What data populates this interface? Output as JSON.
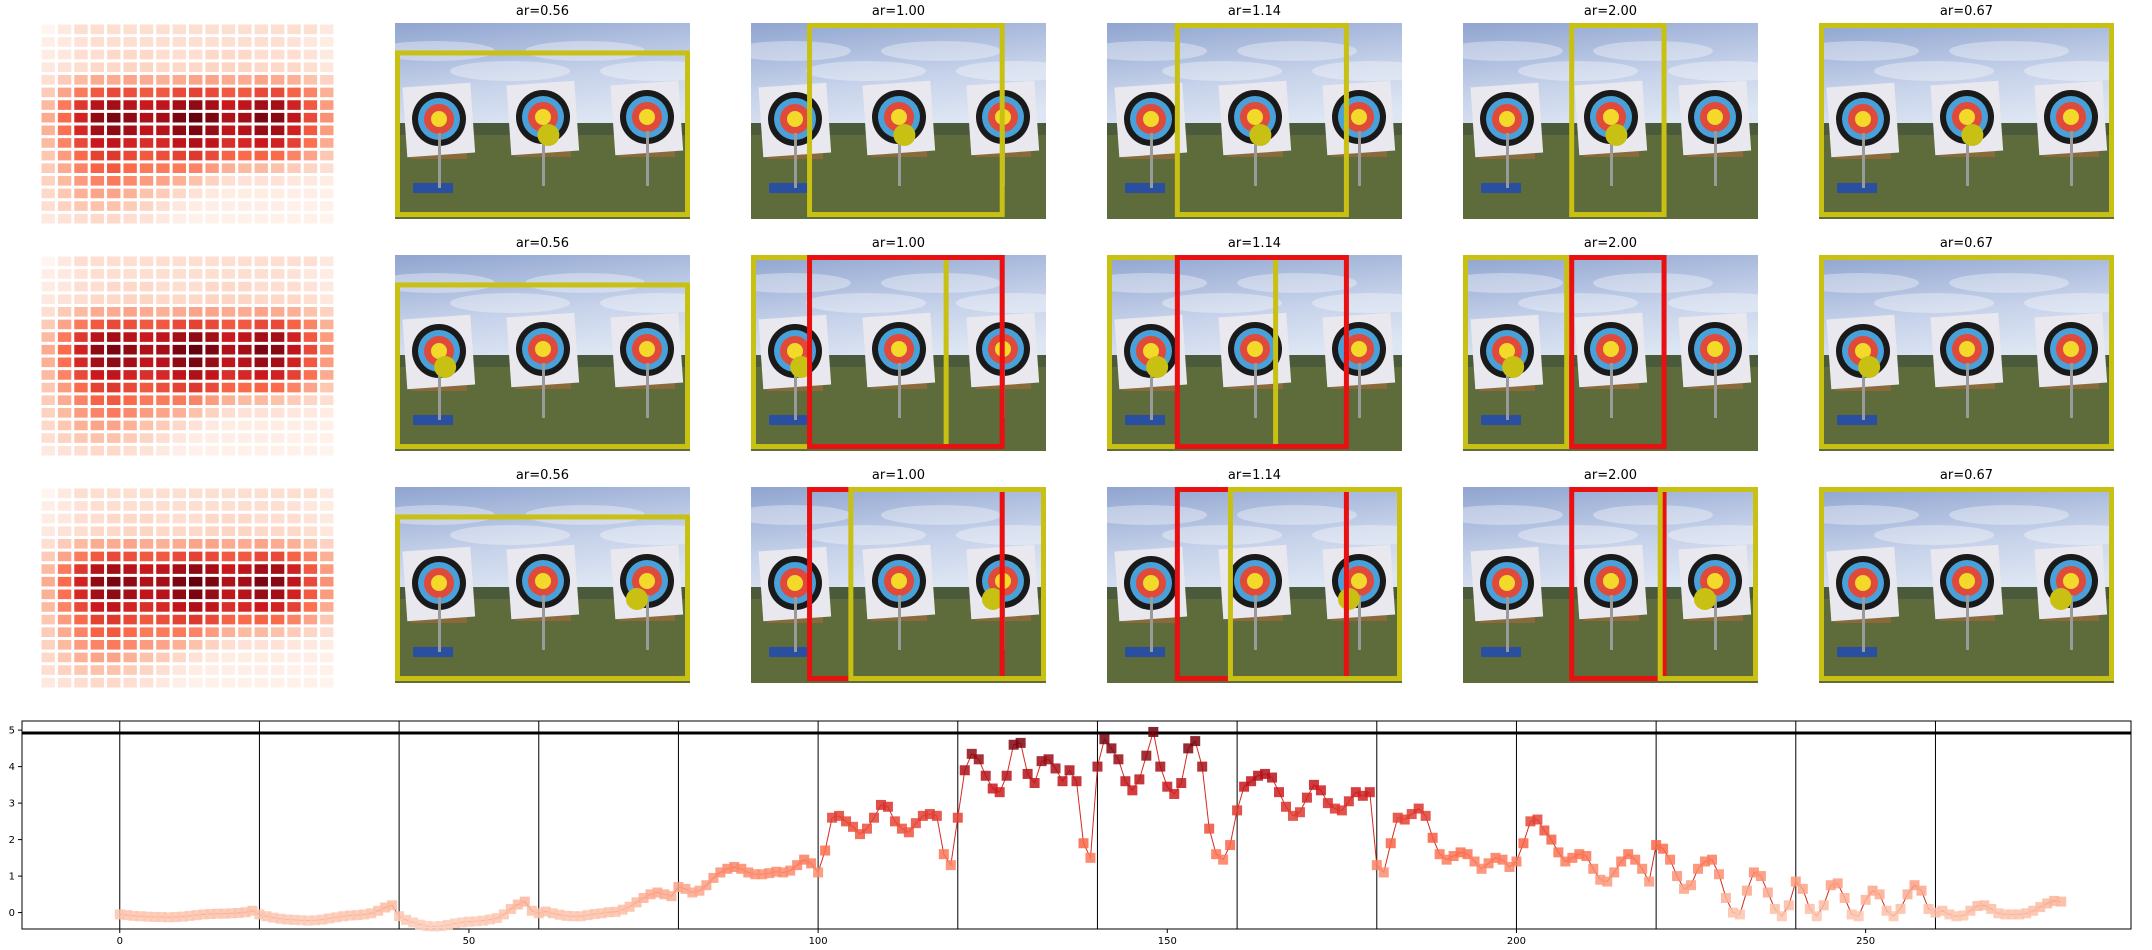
{
  "panels": {
    "rows": [
      {
        "titles": [
          "ar=0.56",
          "ar=1.00",
          "ar=1.14",
          "ar=2.00",
          "ar=0.67"
        ],
        "boxes": [
          [
            {
              "color": "#c8c012",
              "l": 0.0,
              "t": 0.14,
              "r": 1.0,
              "b": 0.99
            }
          ],
          [
            {
              "color": "#c8c012",
              "l": 0.19,
              "t": 0.0,
              "r": 0.86,
              "b": 0.99
            }
          ],
          [
            {
              "color": "#c8c012",
              "l": 0.23,
              "t": 0.0,
              "r": 0.82,
              "b": 0.99
            }
          ],
          [
            {
              "color": "#c8c012",
              "l": 0.36,
              "t": 0.0,
              "r": 0.69,
              "b": 0.99
            }
          ],
          [
            {
              "color": "#c8c012",
              "l": 0.0,
              "t": 0.0,
              "r": 1.0,
              "b": 0.99
            }
          ]
        ],
        "dot": 0.52
      },
      {
        "titles": [
          "ar=0.56",
          "ar=1.00",
          "ar=1.14",
          "ar=2.00",
          "ar=0.67"
        ],
        "boxes": [
          [
            {
              "color": "#c8c012",
              "l": 0.0,
              "t": 0.14,
              "r": 1.0,
              "b": 0.99
            }
          ],
          [
            {
              "color": "#c8c012",
              "l": 0.0,
              "t": 0.0,
              "r": 0.67,
              "b": 0.99
            },
            {
              "color": "#e81010",
              "l": 0.19,
              "t": 0.0,
              "r": 0.86,
              "b": 0.99
            }
          ],
          [
            {
              "color": "#c8c012",
              "l": 0.0,
              "t": 0.0,
              "r": 0.58,
              "b": 0.99
            },
            {
              "color": "#e81010",
              "l": 0.23,
              "t": 0.0,
              "r": 0.82,
              "b": 0.99
            }
          ],
          [
            {
              "color": "#c8c012",
              "l": 0.0,
              "t": 0.0,
              "r": 0.36,
              "b": 0.99
            },
            {
              "color": "#e81010",
              "l": 0.36,
              "t": 0.0,
              "r": 0.69,
              "b": 0.99
            }
          ],
          [
            {
              "color": "#c8c012",
              "l": 0.0,
              "t": 0.0,
              "r": 1.0,
              "b": 0.99
            }
          ]
        ],
        "dot": 0.17
      },
      {
        "titles": [
          "ar=0.56",
          "ar=1.00",
          "ar=1.14",
          "ar=2.00",
          "ar=0.67"
        ],
        "boxes": [
          [
            {
              "color": "#c8c012",
              "l": 0.0,
              "t": 0.14,
              "r": 1.0,
              "b": 0.99
            }
          ],
          [
            {
              "color": "#e81010",
              "l": 0.19,
              "t": 0.0,
              "r": 0.86,
              "b": 0.99
            },
            {
              "color": "#c8c012",
              "l": 0.33,
              "t": 0.0,
              "r": 1.0,
              "b": 0.99
            }
          ],
          [
            {
              "color": "#e81010",
              "l": 0.23,
              "t": 0.0,
              "r": 0.82,
              "b": 0.99
            },
            {
              "color": "#c8c012",
              "l": 0.41,
              "t": 0.0,
              "r": 1.0,
              "b": 0.99
            }
          ],
          [
            {
              "color": "#e81010",
              "l": 0.36,
              "t": 0.0,
              "r": 0.69,
              "b": 0.99
            },
            {
              "color": "#c8c012",
              "l": 0.66,
              "t": 0.0,
              "r": 1.0,
              "b": 0.99
            }
          ],
          [
            {
              "color": "#c8c012",
              "l": 0.0,
              "t": 0.0,
              "r": 1.0,
              "b": 0.99
            }
          ]
        ],
        "dot": 0.82
      }
    ]
  },
  "chart_data": {
    "type": "line",
    "title": "",
    "xlabel": "",
    "ylabel": "",
    "xlim": [
      -14,
      288
    ],
    "ylim": [
      -0.45,
      5.25
    ],
    "xticks": [
      0,
      50,
      100,
      150,
      200,
      250
    ],
    "yticks": [
      0,
      1,
      2,
      3,
      4,
      5
    ],
    "vlines": [
      0,
      20,
      40,
      60,
      80,
      100,
      120,
      140,
      160,
      180,
      200,
      220,
      240,
      260
    ],
    "hline": 4.92,
    "grid": false,
    "colormap": "reds",
    "series": [
      {
        "values": [
          -0.05,
          -0.07,
          -0.09,
          -0.1,
          -0.11,
          -0.12,
          -0.12,
          -0.13,
          -0.12,
          -0.11,
          -0.09,
          -0.07,
          -0.05,
          -0.04,
          -0.03,
          -0.03,
          -0.02,
          -0.01,
          0.01,
          0.05,
          -0.05,
          -0.1,
          -0.14,
          -0.17,
          -0.19,
          -0.2,
          -0.21,
          -0.22,
          -0.21,
          -0.19,
          -0.16,
          -0.13,
          -0.1,
          -0.08,
          -0.07,
          -0.05,
          -0.02,
          0.05,
          0.14,
          0.2,
          -0.1,
          -0.2,
          -0.27,
          -0.33,
          -0.37,
          -0.38,
          -0.37,
          -0.34,
          -0.3,
          -0.27,
          -0.25,
          -0.24,
          -0.22,
          -0.19,
          -0.15,
          -0.05,
          0.1,
          0.22,
          0.3,
          0.05,
          -0.02,
          0.03,
          -0.02,
          -0.06,
          -0.09,
          -0.1,
          -0.1,
          -0.07,
          -0.04,
          -0.02,
          0.01,
          0.02,
          0.08,
          0.16,
          0.28,
          0.4,
          0.5,
          0.55,
          0.5,
          0.45,
          0.7,
          0.65,
          0.55,
          0.6,
          0.75,
          0.95,
          1.1,
          1.2,
          1.25,
          1.2,
          1.1,
          1.05,
          1.05,
          1.08,
          1.12,
          1.1,
          1.15,
          1.3,
          1.45,
          1.35,
          1.1,
          1.7,
          2.6,
          2.65,
          2.5,
          2.35,
          2.15,
          2.3,
          2.6,
          2.95,
          2.9,
          2.5,
          2.3,
          2.2,
          2.45,
          2.65,
          2.7,
          2.65,
          1.6,
          1.3,
          2.6,
          3.9,
          4.35,
          4.2,
          3.75,
          3.4,
          3.3,
          3.75,
          4.6,
          4.65,
          3.8,
          3.55,
          4.15,
          4.2,
          3.95,
          3.6,
          3.9,
          3.6,
          1.9,
          1.5,
          4.0,
          4.75,
          4.5,
          4.2,
          3.6,
          3.35,
          3.65,
          4.3,
          4.95,
          4.0,
          3.45,
          3.25,
          3.55,
          4.5,
          4.7,
          4.0,
          2.3,
          1.6,
          1.45,
          1.85,
          2.8,
          3.45,
          3.6,
          3.75,
          3.8,
          3.7,
          3.3,
          2.9,
          2.65,
          2.75,
          3.15,
          3.5,
          3.35,
          3.0,
          2.85,
          2.8,
          3.05,
          3.3,
          3.2,
          3.3,
          1.3,
          1.1,
          1.9,
          2.6,
          2.55,
          2.7,
          2.85,
          2.65,
          2.05,
          1.6,
          1.45,
          1.55,
          1.65,
          1.6,
          1.4,
          1.2,
          1.35,
          1.5,
          1.45,
          1.25,
          1.4,
          1.9,
          2.5,
          2.55,
          2.25,
          2.0,
          1.65,
          1.4,
          1.5,
          1.6,
          1.55,
          1.2,
          0.9,
          0.85,
          1.1,
          1.4,
          1.6,
          1.45,
          1.2,
          0.85,
          1.85,
          1.75,
          1.45,
          1.0,
          0.65,
          0.75,
          1.2,
          1.4,
          1.45,
          1.05,
          0.4,
          0.0,
          -0.05,
          0.6,
          1.1,
          1.0,
          0.55,
          0.1,
          -0.1,
          0.2,
          0.85,
          0.65,
          0.1,
          -0.1,
          0.2,
          0.75,
          0.8,
          0.4,
          -0.05,
          -0.1,
          0.35,
          0.6,
          0.5,
          0.05,
          -0.1,
          0.1,
          0.5,
          0.75,
          0.6,
          0.1,
          0.0,
          0.05,
          -0.05,
          -0.1,
          -0.08,
          0.05,
          0.18,
          0.2,
          0.1,
          -0.02,
          -0.05,
          -0.05,
          -0.05,
          -0.02,
          0.05,
          0.15,
          0.25,
          0.32,
          0.3
        ]
      }
    ],
    "heatmap": {
      "rows": 16,
      "cols": 18,
      "values": [
        [
          0.0,
          0.05,
          0.1,
          0.1,
          0.1,
          0.1,
          0.1,
          0.1,
          0.1,
          0.1,
          0.1,
          0.1,
          0.1,
          0.1,
          0.1,
          0.1,
          0.1,
          0.05
        ],
        [
          0.03,
          0.05,
          0.08,
          0.1,
          0.1,
          0.1,
          0.1,
          0.1,
          0.1,
          0.1,
          0.1,
          0.1,
          0.1,
          0.1,
          0.1,
          0.08,
          0.06,
          0.04
        ],
        [
          0.04,
          0.06,
          0.1,
          0.1,
          0.12,
          0.12,
          0.12,
          0.1,
          0.1,
          0.1,
          0.12,
          0.12,
          0.12,
          0.1,
          0.1,
          0.1,
          0.08,
          0.05
        ],
        [
          0.05,
          0.08,
          0.1,
          0.12,
          0.12,
          0.14,
          0.14,
          0.12,
          0.12,
          0.12,
          0.14,
          0.14,
          0.14,
          0.12,
          0.12,
          0.12,
          0.1,
          0.06
        ],
        [
          0.1,
          0.18,
          0.25,
          0.3,
          0.3,
          0.32,
          0.3,
          0.28,
          0.3,
          0.32,
          0.32,
          0.3,
          0.3,
          0.32,
          0.3,
          0.28,
          0.22,
          0.15
        ],
        [
          0.18,
          0.32,
          0.45,
          0.55,
          0.6,
          0.58,
          0.55,
          0.55,
          0.6,
          0.62,
          0.6,
          0.55,
          0.55,
          0.6,
          0.6,
          0.52,
          0.42,
          0.28
        ],
        [
          0.25,
          0.45,
          0.65,
          0.8,
          0.85,
          0.8,
          0.75,
          0.78,
          0.85,
          0.9,
          0.85,
          0.75,
          0.78,
          0.85,
          0.85,
          0.72,
          0.55,
          0.35
        ],
        [
          0.3,
          0.5,
          0.72,
          0.9,
          0.95,
          0.9,
          0.82,
          0.85,
          0.95,
          1.0,
          0.95,
          0.82,
          0.85,
          0.95,
          0.92,
          0.78,
          0.6,
          0.38
        ],
        [
          0.28,
          0.48,
          0.7,
          0.85,
          0.9,
          0.85,
          0.78,
          0.8,
          0.9,
          0.95,
          0.88,
          0.78,
          0.8,
          0.88,
          0.85,
          0.72,
          0.55,
          0.35
        ],
        [
          0.25,
          0.42,
          0.6,
          0.75,
          0.78,
          0.72,
          0.68,
          0.7,
          0.78,
          0.82,
          0.78,
          0.68,
          0.7,
          0.75,
          0.72,
          0.62,
          0.48,
          0.3
        ],
        [
          0.2,
          0.35,
          0.5,
          0.62,
          0.65,
          0.6,
          0.55,
          0.58,
          0.62,
          0.65,
          0.6,
          0.52,
          0.5,
          0.52,
          0.5,
          0.42,
          0.32,
          0.2
        ],
        [
          0.18,
          0.3,
          0.42,
          0.52,
          0.55,
          0.5,
          0.45,
          0.45,
          0.45,
          0.42,
          0.35,
          0.28,
          0.25,
          0.25,
          0.22,
          0.18,
          0.14,
          0.1
        ],
        [
          0.15,
          0.25,
          0.35,
          0.42,
          0.45,
          0.4,
          0.35,
          0.32,
          0.28,
          0.22,
          0.15,
          0.1,
          0.08,
          0.08,
          0.08,
          0.06,
          0.05,
          0.04
        ],
        [
          0.12,
          0.2,
          0.28,
          0.32,
          0.32,
          0.28,
          0.22,
          0.18,
          0.12,
          0.08,
          0.05,
          0.04,
          0.04,
          0.04,
          0.04,
          0.03,
          0.03,
          0.02
        ],
        [
          0.1,
          0.15,
          0.2,
          0.22,
          0.22,
          0.18,
          0.14,
          0.1,
          0.06,
          0.04,
          0.03,
          0.03,
          0.03,
          0.03,
          0.03,
          0.02,
          0.02,
          0.02
        ],
        [
          0.05,
          0.08,
          0.1,
          0.12,
          0.12,
          0.1,
          0.08,
          0.05,
          0.03,
          0.02,
          0.02,
          0.02,
          0.02,
          0.02,
          0.02,
          0.02,
          0.02,
          0.01
        ]
      ]
    }
  }
}
